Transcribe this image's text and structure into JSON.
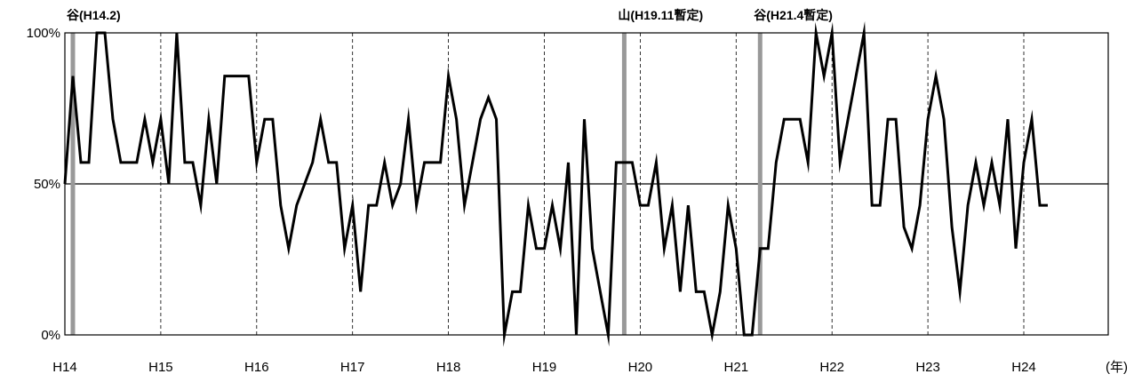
{
  "chart_data": {
    "type": "line",
    "x_start": "H14.1",
    "x_unit": "month",
    "xlim": [
      "H14",
      "H24"
    ],
    "x_tick_labels": [
      "H14",
      "H15",
      "H16",
      "H17",
      "H18",
      "H19",
      "H20",
      "H21",
      "H22",
      "H23",
      "H24"
    ],
    "x_unit_label": "(年)",
    "ylim": [
      0,
      100
    ],
    "y_tick_labels": [
      "0%",
      "50%",
      "100%"
    ],
    "y_tick_values": [
      0,
      50,
      100
    ],
    "grid": {
      "vertical_dashed": true,
      "horizontal_at": 50
    },
    "series": [
      {
        "color": "#000000",
        "values": [
          50,
          85.7,
          57.1,
          57.1,
          100,
          100,
          71.4,
          57.1,
          57.1,
          57.1,
          71.4,
          57.1,
          71.4,
          50,
          100,
          57.1,
          57.1,
          42.9,
          71.4,
          50,
          85.7,
          85.7,
          85.7,
          85.7,
          57.1,
          71.4,
          71.4,
          42.9,
          28.6,
          42.9,
          50,
          57.1,
          71.4,
          57.1,
          57.1,
          28.6,
          42.9,
          14.3,
          42.9,
          42.9,
          57.1,
          42.9,
          50,
          71.4,
          42.9,
          57.1,
          57.1,
          57.1,
          85.7,
          71.4,
          42.9,
          57.1,
          71.4,
          78.6,
          71.4,
          0,
          14.3,
          14.3,
          42.9,
          28.6,
          28.6,
          42.9,
          28.6,
          57.1,
          0,
          71.4,
          28.6,
          14.3,
          0,
          57.1,
          57.1,
          57.1,
          42.9,
          42.9,
          57.1,
          28.6,
          42.9,
          14.3,
          42.9,
          14.3,
          14.3,
          0,
          14.3,
          42.9,
          28.6,
          0,
          0,
          28.6,
          28.6,
          57.1,
          71.4,
          71.4,
          71.4,
          57.1,
          100,
          85.7,
          100,
          57.1,
          71.4,
          85.7,
          100,
          42.9,
          42.9,
          71.4,
          71.4,
          35.7,
          28.6,
          42.9,
          71.4,
          85.7,
          71.4,
          35.7,
          14.3,
          42.9,
          57.1,
          42.9,
          57.1,
          42.9,
          71.4,
          28.6,
          57.1,
          71.4,
          42.9,
          42.9
        ]
      }
    ],
    "reference_lines": [
      {
        "label": "谷(H14.2)",
        "x_month_index": 1,
        "color": "#999999"
      },
      {
        "label": "山(H19.11暫定)",
        "x_month_index": 70,
        "color": "#999999"
      },
      {
        "label": "谷(H21.4暫定)",
        "x_month_index": 87,
        "color": "#999999"
      }
    ]
  }
}
